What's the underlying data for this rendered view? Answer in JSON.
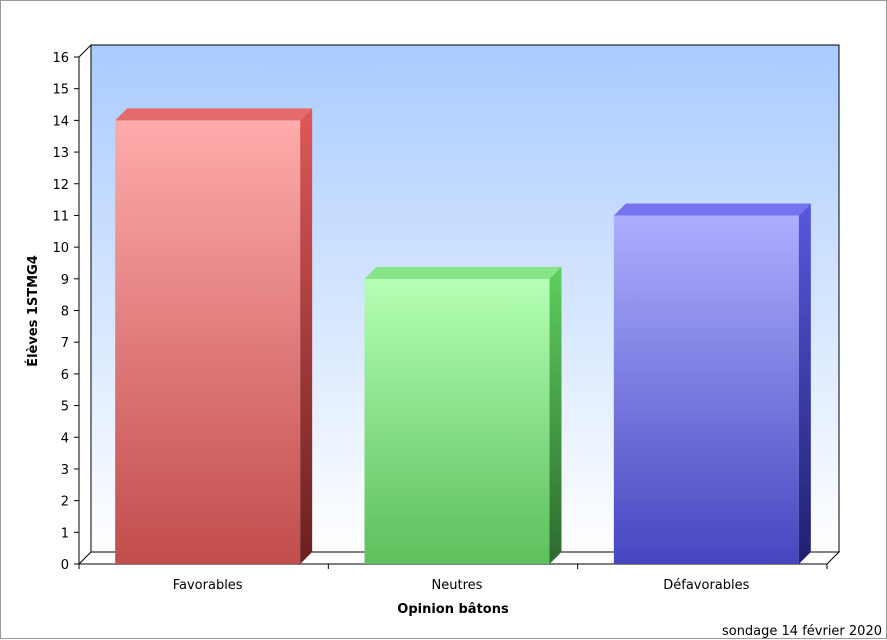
{
  "chart_data": {
    "type": "bar",
    "categories": [
      "Favorables",
      "Neutres",
      "Défavorables"
    ],
    "values": [
      14,
      9,
      11
    ],
    "xlabel": "Opinion bâtons",
    "ylabel": "Élèves 1STMG4",
    "ylim": [
      0,
      16
    ],
    "yticks": [
      0,
      1,
      2,
      3,
      4,
      5,
      6,
      7,
      8,
      9,
      10,
      11,
      12,
      13,
      14,
      15,
      16
    ],
    "grid": false,
    "colors": [
      "#e06a6a",
      "#88e088",
      "#8f8ff0"
    ],
    "note": "sondage 14 février 2020"
  }
}
